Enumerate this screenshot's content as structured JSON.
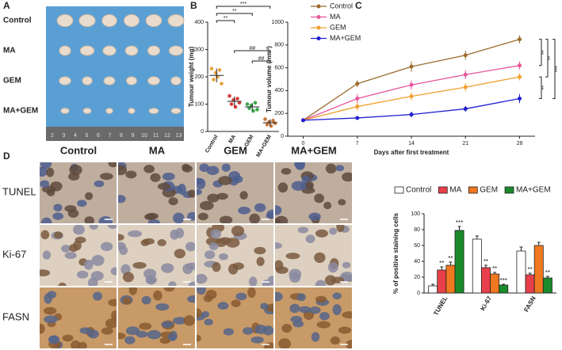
{
  "panel_labels": [
    "A",
    "B",
    "C",
    "D"
  ],
  "photo_a": {
    "row_labels": [
      "Control",
      "MA",
      "GEM",
      "MA+GEM"
    ],
    "ruler": [
      "2",
      "3",
      "4",
      "5",
      "6",
      "7",
      "8",
      "9",
      "10",
      "11",
      "12",
      "13"
    ]
  },
  "photo_d": {
    "column_labels": [
      "Control",
      "MA",
      "GEM",
      "MA+GEM"
    ],
    "row_labels": [
      "TUNEL",
      "Ki-67",
      "FASN"
    ]
  },
  "chart_data": [
    {
      "type": "dot",
      "ylabel": "Tumour weight (mg)",
      "categories": [
        "Control",
        "MA",
        "GEM",
        "MA+GEM"
      ],
      "colors": [
        "#e8a23c",
        "#d83a3a",
        "#3aa84a",
        "#c8783c"
      ],
      "values": [
        [
          230,
          190,
          215,
          200,
          225,
          175
        ],
        [
          130,
          100,
          115,
          90,
          120,
          105
        ],
        [
          100,
          85,
          95,
          75,
          105,
          80
        ],
        [
          45,
          25,
          35,
          20,
          40,
          30
        ]
      ],
      "means": [
        205,
        110,
        90,
        32
      ],
      "sds": [
        25,
        18,
        14,
        12
      ],
      "ylim": [
        0,
        400
      ],
      "yticks": [
        0,
        100,
        200,
        300,
        400
      ],
      "brackets": [
        {
          "text": "***",
          "from": 0,
          "to": 3
        },
        {
          "text": "**",
          "from": 0,
          "to": 2
        },
        {
          "text": "**",
          "from": 0,
          "to": 1
        },
        {
          "text": "##",
          "from": 1,
          "to": 3
        },
        {
          "text": "##",
          "from": 2,
          "to": 3
        }
      ]
    },
    {
      "type": "line",
      "xlabel": "Days after first treatment",
      "ylabel": "Tumour volume (mm³)",
      "x": [
        0,
        7,
        14,
        21,
        28
      ],
      "xlim": [
        -2,
        30
      ],
      "xticks": [
        0,
        7,
        14,
        21,
        28
      ],
      "ylim": [
        0,
        1000
      ],
      "yticks": [
        0,
        200,
        400,
        600,
        800,
        1000
      ],
      "legend": "top-left",
      "series": [
        {
          "name": "Control",
          "color": "#9c6b2e",
          "values": [
            140,
            460,
            610,
            710,
            850
          ],
          "errors": [
            15,
            30,
            45,
            40,
            35
          ]
        },
        {
          "name": "MA",
          "color": "#e8559a",
          "values": [
            140,
            330,
            450,
            540,
            620
          ],
          "errors": [
            10,
            40,
            40,
            40,
            35
          ]
        },
        {
          "name": "GEM",
          "color": "#f0a030",
          "values": [
            140,
            260,
            350,
            430,
            520
          ],
          "errors": [
            10,
            35,
            35,
            35,
            30
          ]
        },
        {
          "name": "MA+GEM",
          "color": "#2020d0",
          "values": [
            140,
            160,
            190,
            240,
            330
          ],
          "errors": [
            10,
            15,
            25,
            25,
            40
          ]
        }
      ],
      "brackets": [
        {
          "text": "**",
          "from": 0,
          "to": 1
        },
        {
          "text": "**",
          "from": 0,
          "to": 2
        },
        {
          "text": "***",
          "from": 0,
          "to": 3
        },
        {
          "text": "**",
          "from": 2,
          "to": 3
        }
      ]
    },
    {
      "type": "bar",
      "ylabel": "% of positive staining cells",
      "categories": [
        "TUNEL",
        "Ki-67",
        "FASN"
      ],
      "ylim": [
        0,
        100
      ],
      "yticks": [
        0,
        20,
        40,
        60,
        80,
        100
      ],
      "legend": "top",
      "series": [
        {
          "name": "Control",
          "color": "#ffffff",
          "values": [
            9,
            68,
            53
          ],
          "errors": [
            2,
            4,
            5
          ],
          "significance": [
            null,
            null,
            null
          ]
        },
        {
          "name": "MA",
          "color": "#e8404a",
          "values": [
            29,
            32,
            23
          ],
          "errors": [
            4,
            3,
            2
          ],
          "significance": [
            "**",
            "**",
            "**"
          ]
        },
        {
          "name": "GEM",
          "color": "#f07820",
          "values": [
            35,
            24,
            60
          ],
          "errors": [
            4,
            2,
            4
          ],
          "significance": [
            "**",
            "**",
            null
          ]
        },
        {
          "name": "MA+GEM",
          "color": "#1a8a2a",
          "values": [
            79,
            10,
            19
          ],
          "errors": [
            5,
            1,
            2
          ],
          "significance": [
            "***",
            "***",
            "**"
          ]
        }
      ]
    }
  ]
}
